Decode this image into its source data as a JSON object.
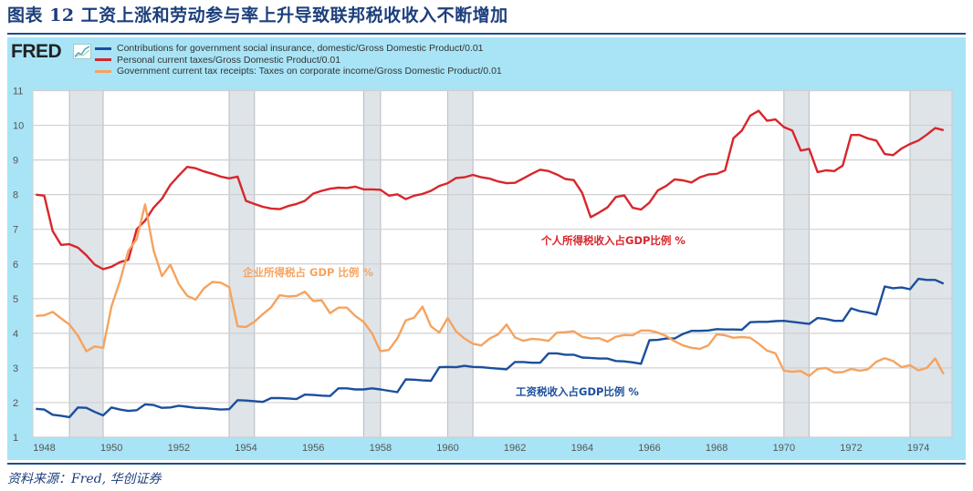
{
  "title": "图表 12  工资上涨和劳动参与率上升导致联邦税收收入不断增加",
  "source": "资料来源：Fred, 华创证券",
  "logo": "FRED",
  "chart_data": {
    "type": "line",
    "title": "",
    "xlabel": "",
    "ylabel": "",
    "xlim": [
      "1947Q3",
      "1975Q1"
    ],
    "ylim": [
      1,
      11
    ],
    "yticks": [
      1,
      2,
      3,
      4,
      5,
      6,
      7,
      8,
      9,
      10,
      11
    ],
    "xticks": [
      "1948",
      "1950",
      "1952",
      "1954",
      "1956",
      "1958",
      "1960",
      "1962",
      "1964",
      "1966",
      "1968",
      "1970",
      "1972",
      "1974"
    ],
    "grid": true,
    "legend_position": "top-left",
    "recessions": [
      [
        "1948Q4",
        "1949Q4"
      ],
      [
        "1953Q3",
        "1954Q2"
      ],
      [
        "1957Q3",
        "1958Q1"
      ],
      [
        "1960Q1",
        "1960Q4"
      ],
      [
        "1970Q1",
        "1970Q4"
      ],
      [
        "1973Q4",
        "1975Q1"
      ]
    ],
    "x_start": "1947Q4",
    "x_step": "quarter",
    "series": [
      {
        "name": "Contributions for government social insurance, domestic/Gross Domestic Product/0.01",
        "color": "#1b4f9c",
        "annotation": "工资税收入占GDP比例 %",
        "values": [
          1.82,
          1.8,
          1.65,
          1.62,
          1.58,
          1.86,
          1.85,
          1.73,
          1.63,
          1.86,
          1.8,
          1.76,
          1.78,
          1.95,
          1.93,
          1.85,
          1.86,
          1.91,
          1.88,
          1.85,
          1.84,
          1.82,
          1.8,
          1.81,
          2.07,
          2.06,
          2.04,
          2.02,
          2.13,
          2.13,
          2.12,
          2.1,
          2.23,
          2.22,
          2.2,
          2.19,
          2.41,
          2.41,
          2.38,
          2.38,
          2.41,
          2.38,
          2.34,
          2.3,
          2.67,
          2.66,
          2.64,
          2.63,
          3.02,
          3.03,
          3.02,
          3.06,
          3.03,
          3.02,
          3.0,
          2.98,
          2.96,
          3.17,
          3.17,
          3.15,
          3.15,
          3.42,
          3.42,
          3.38,
          3.38,
          3.3,
          3.29,
          3.27,
          3.27,
          3.2,
          3.19,
          3.16,
          3.12,
          3.8,
          3.81,
          3.85,
          3.85,
          3.98,
          4.07,
          4.07,
          4.08,
          4.12,
          4.11,
          4.11,
          4.1,
          4.32,
          4.33,
          4.33,
          4.35,
          4.36,
          4.33,
          4.3,
          4.27,
          4.44,
          4.41,
          4.36,
          4.36,
          4.72,
          4.64,
          4.6,
          4.54,
          5.35,
          5.3,
          5.32,
          5.27,
          5.57,
          5.54,
          5.54,
          5.43
        ]
      },
      {
        "name": "Personal current taxes/Gross Domestic Product/0.01",
        "color": "#d7262b",
        "annotation": "个人所得税收入占GDP比例 %",
        "values": [
          8.0,
          7.97,
          6.95,
          6.55,
          6.57,
          6.47,
          6.25,
          5.98,
          5.85,
          5.92,
          6.05,
          6.12,
          7.0,
          7.25,
          7.62,
          7.88,
          8.28,
          8.55,
          8.8,
          8.76,
          8.67,
          8.6,
          8.52,
          8.47,
          8.52,
          7.82,
          7.73,
          7.65,
          7.6,
          7.58,
          7.67,
          7.73,
          7.82,
          8.03,
          8.11,
          8.17,
          8.2,
          8.19,
          8.23,
          8.15,
          8.15,
          8.14,
          7.97,
          8.01,
          7.87,
          7.97,
          8.02,
          8.11,
          8.25,
          8.33,
          8.48,
          8.5,
          8.57,
          8.5,
          8.46,
          8.38,
          8.33,
          8.34,
          8.47,
          8.6,
          8.72,
          8.68,
          8.58,
          8.45,
          8.42,
          8.05,
          7.35,
          7.48,
          7.63,
          7.93,
          7.98,
          7.62,
          7.57,
          7.77,
          8.12,
          8.25,
          8.44,
          8.41,
          8.35,
          8.5,
          8.58,
          8.6,
          8.7,
          9.63,
          9.85,
          10.28,
          10.42,
          10.13,
          10.17,
          9.95,
          9.85,
          9.27,
          9.32,
          8.65,
          8.7,
          8.68,
          8.84,
          9.72,
          9.72,
          9.62,
          9.56,
          9.17,
          9.14,
          9.33,
          9.46,
          9.56,
          9.73,
          9.92,
          9.86
        ]
      },
      {
        "name": "Government current tax receipts: Taxes on corporate income/Gross Domestic Product/0.01",
        "color": "#f5a35f",
        "annotation": "企业所得税占 GDP 比例 %",
        "values": [
          4.5,
          4.52,
          4.62,
          4.43,
          4.25,
          3.93,
          3.48,
          3.62,
          3.58,
          4.78,
          5.5,
          6.38,
          6.72,
          7.72,
          6.4,
          5.65,
          5.98,
          5.42,
          5.08,
          4.97,
          5.3,
          5.48,
          5.46,
          5.33,
          4.2,
          4.18,
          4.33,
          4.55,
          4.75,
          5.1,
          5.06,
          5.08,
          5.2,
          4.93,
          4.95,
          4.58,
          4.74,
          4.74,
          4.5,
          4.33,
          4.0,
          3.48,
          3.52,
          3.85,
          4.37,
          4.45,
          4.77,
          4.2,
          4.02,
          4.44,
          4.05,
          3.85,
          3.7,
          3.65,
          3.85,
          3.97,
          4.25,
          3.88,
          3.78,
          3.84,
          3.82,
          3.78,
          4.02,
          4.03,
          4.06,
          3.9,
          3.85,
          3.86,
          3.76,
          3.9,
          3.95,
          3.94,
          4.08,
          4.08,
          4.02,
          3.92,
          3.77,
          3.65,
          3.58,
          3.55,
          3.65,
          3.97,
          3.94,
          3.87,
          3.89,
          3.87,
          3.7,
          3.5,
          3.42,
          2.92,
          2.89,
          2.91,
          2.77,
          2.97,
          3.0,
          2.87,
          2.88,
          2.97,
          2.92,
          2.96,
          3.18,
          3.28,
          3.2,
          3.02,
          3.08,
          2.93,
          3.0,
          3.27,
          2.82
        ]
      }
    ]
  }
}
